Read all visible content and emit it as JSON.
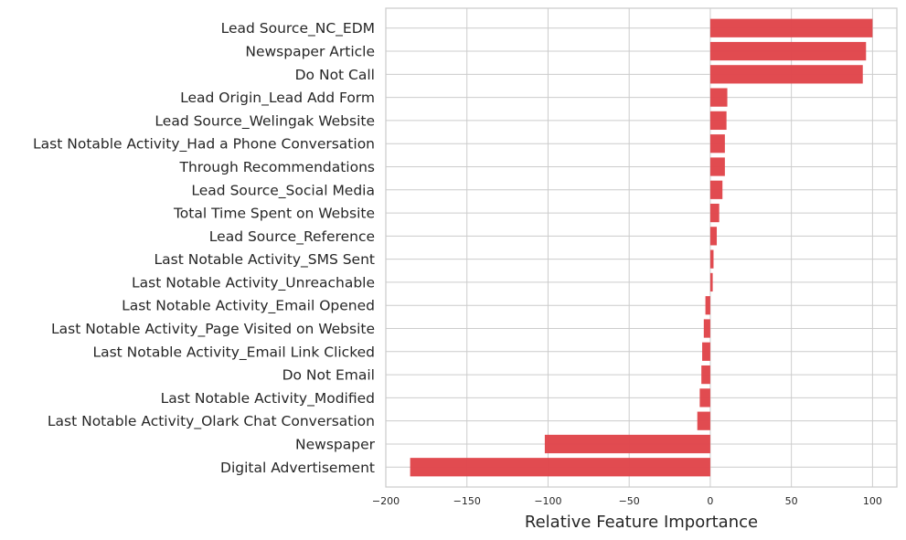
{
  "chart_data": {
    "type": "bar",
    "orientation": "horizontal",
    "title": "",
    "xlabel": "Relative Feature Importance",
    "ylabel": "",
    "xlim": [
      -200,
      115
    ],
    "xticks": [
      -200,
      -150,
      -100,
      -50,
      0,
      50,
      100
    ],
    "xtick_labels": [
      "−200",
      "−150",
      "−100",
      "−50",
      "0",
      "50",
      "100"
    ],
    "grid": true,
    "bar_color": "#e0474c",
    "categories": [
      "Lead Source_NC_EDM",
      "Newspaper Article",
      "Do Not Call",
      "Lead Origin_Lead Add Form",
      "Lead Source_Welingak Website",
      "Last Notable Activity_Had a Phone Conversation",
      "Through Recommendations",
      "Lead Source_Social Media",
      "Total Time Spent on Website",
      "Lead Source_Reference",
      "Last Notable Activity_SMS Sent",
      "Last Notable Activity_Unreachable",
      "Last Notable Activity_Email Opened",
      "Last Notable Activity_Page Visited on Website",
      "Last Notable Activity_Email Link Clicked",
      "Do Not Email",
      "Last Notable Activity_Modified",
      "Last Notable Activity_Olark Chat Conversation",
      "Newspaper",
      "Digital Advertisement"
    ],
    "values": [
      100,
      96,
      94,
      10.5,
      10,
      9,
      9,
      7.5,
      5.5,
      4,
      2,
      1.5,
      -3,
      -4,
      -5,
      -5.5,
      -6.5,
      -8,
      -102,
      -185
    ]
  }
}
